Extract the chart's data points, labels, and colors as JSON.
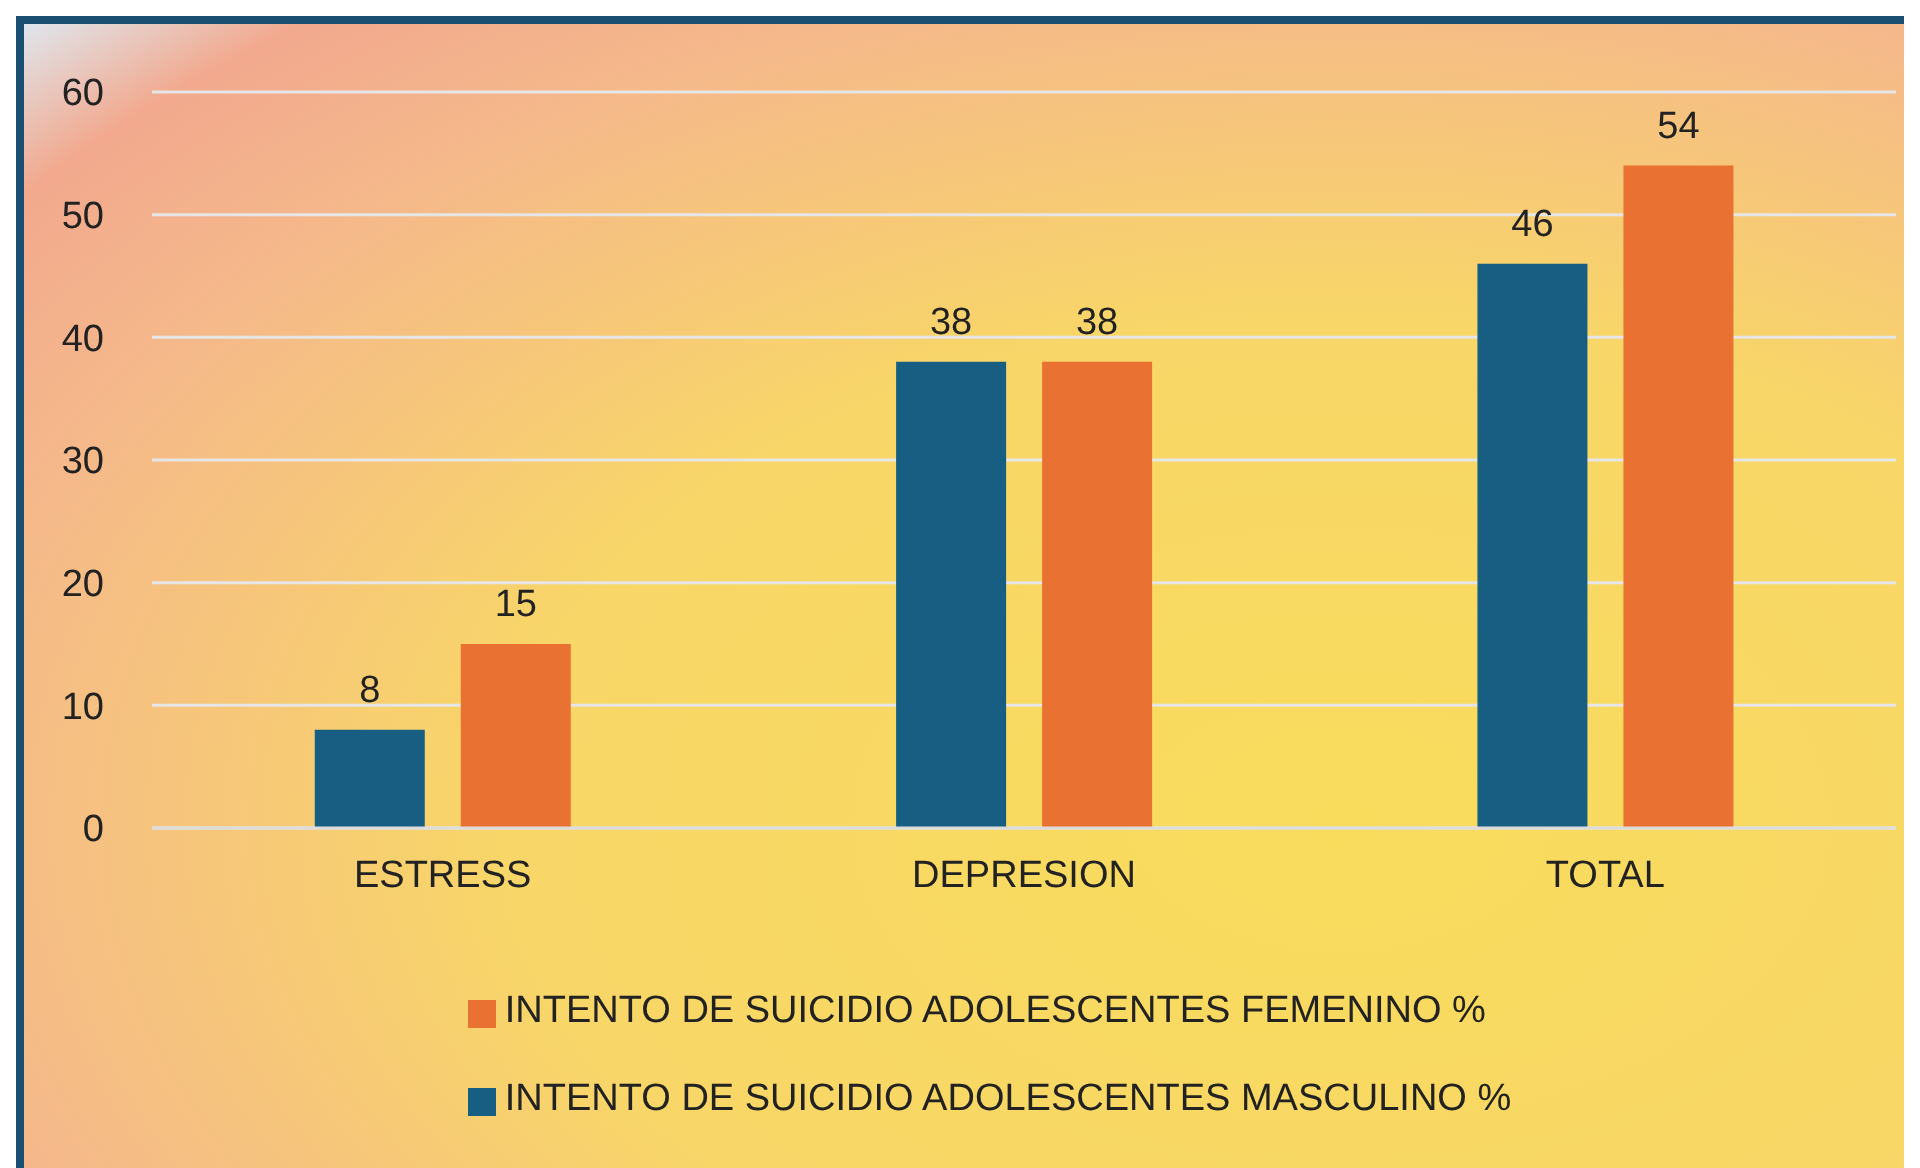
{
  "chart_data": {
    "type": "bar",
    "categories": [
      "ESTRESS",
      "DEPRESION",
      "TOTAL"
    ],
    "series": [
      {
        "name": "INTENTO DE SUICIDIO ADOLESCENTES MASCULINO %",
        "color": "#175e82",
        "values": [
          8,
          38,
          46
        ]
      },
      {
        "name": "INTENTO DE SUICIDIO ADOLESCENTES FEMENINO %",
        "color": "#e97132",
        "values": [
          15,
          38,
          54
        ]
      }
    ],
    "ylim": [
      0,
      60
    ],
    "yticks": [
      0,
      10,
      20,
      30,
      40,
      50,
      60
    ],
    "grid": "y",
    "legend": "bottom",
    "data_labels": true
  }
}
